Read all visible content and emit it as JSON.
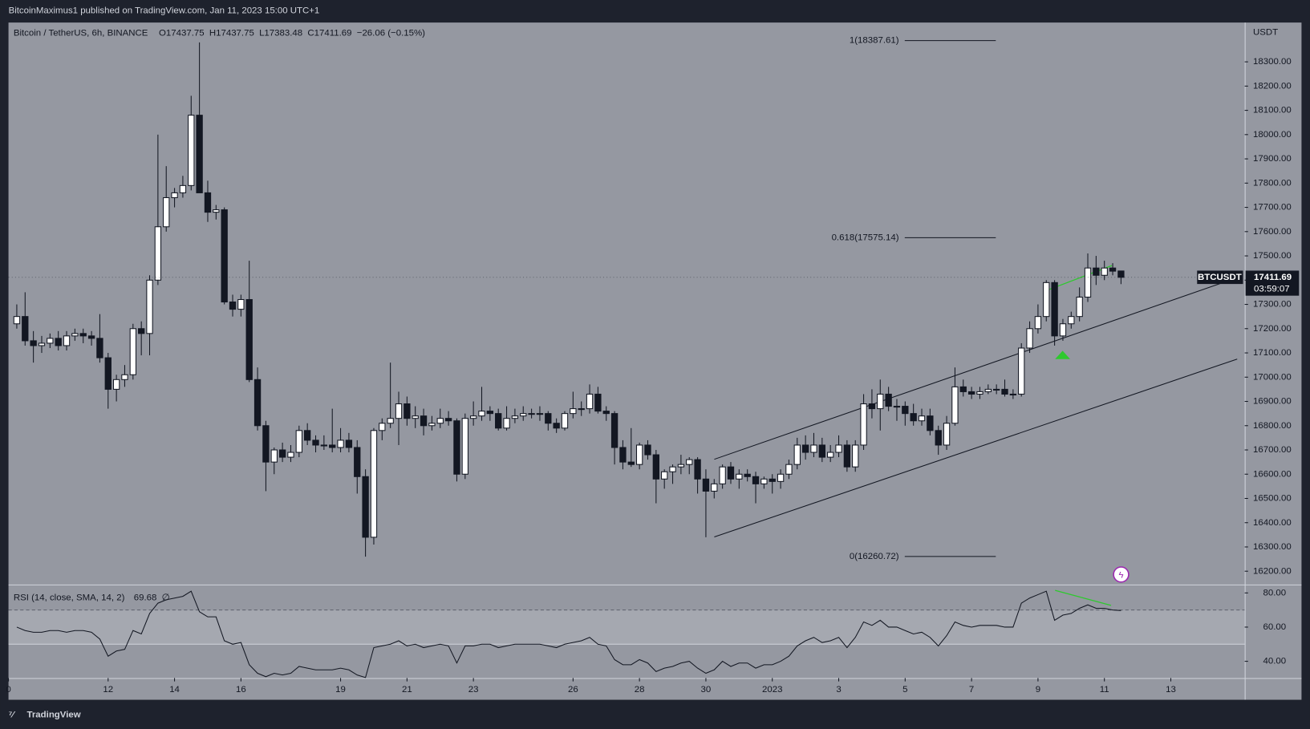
{
  "header": {
    "publisher": "BitcoinMaximus1 published on TradingView.com, Jan 11, 2023 15:00 UTC+1",
    "brand": "TradingView"
  },
  "chart_data": [
    {
      "type": "candlestick",
      "title": "Bitcoin / TetherUS, 6h, BINANCE",
      "legend_values": [
        "O17437.75",
        "H17437.75",
        "L17383.48",
        "C17411.69",
        "−26.06 (−0.15%)"
      ],
      "currency": "USDT",
      "symbol": "BTCUSDT",
      "last_price": 17411.69,
      "countdown": "03:59:07",
      "up_color": "#ffffff",
      "down_color": "#131722",
      "xlim": [
        -1,
        147.9
      ],
      "ylim": [
        16145,
        18462
      ],
      "xticks": [
        {
          "value": -1,
          "label": "0"
        },
        {
          "value": 11,
          "label": "12"
        },
        {
          "value": 19,
          "label": "14"
        },
        {
          "value": 27,
          "label": "16"
        },
        {
          "value": 39,
          "label": "19"
        },
        {
          "value": 47,
          "label": "21"
        },
        {
          "value": 55,
          "label": "23"
        },
        {
          "value": 67,
          "label": "26"
        },
        {
          "value": 75,
          "label": "28"
        },
        {
          "value": 83,
          "label": "30"
        },
        {
          "value": 91,
          "label": "2023"
        },
        {
          "value": 99,
          "label": "3"
        },
        {
          "value": 107,
          "label": "5"
        },
        {
          "value": 115,
          "label": "7"
        },
        {
          "value": 123,
          "label": "9"
        },
        {
          "value": 131,
          "label": "11"
        },
        {
          "value": 139,
          "label": "13"
        }
      ],
      "yticks": [
        {
          "value": 16200,
          "label": "16200.00"
        },
        {
          "value": 16300,
          "label": "16300.00"
        },
        {
          "value": 16400,
          "label": "16400.00"
        },
        {
          "value": 16500,
          "label": "16500.00"
        },
        {
          "value": 16600,
          "label": "16600.00"
        },
        {
          "value": 16700,
          "label": "16700.00"
        },
        {
          "value": 16800,
          "label": "16800.00"
        },
        {
          "value": 16900,
          "label": "16900.00"
        },
        {
          "value": 17000,
          "label": "17000.00"
        },
        {
          "value": 17100,
          "label": "17100.00"
        },
        {
          "value": 17200,
          "label": "17200.00"
        },
        {
          "value": 17300,
          "label": "17300.00"
        },
        {
          "value": 17400,
          "label": "17400.00"
        },
        {
          "value": 17500,
          "label": "17500.00"
        },
        {
          "value": 17600,
          "label": "17600.00"
        },
        {
          "value": 17700,
          "label": "17700.00"
        },
        {
          "value": 17800,
          "label": "17800.00"
        },
        {
          "value": 17900,
          "label": "17900.00"
        },
        {
          "value": 18000,
          "label": "18000.00"
        },
        {
          "value": 18100,
          "label": "18100.00"
        },
        {
          "value": 18200,
          "label": "18200.00"
        },
        {
          "value": 18300,
          "label": "18300.00"
        }
      ],
      "fib_levels": [
        {
          "value": 18387.61,
          "label": "1(18387.61)"
        },
        {
          "value": 17575.14,
          "label": "0.618(17575.14)"
        },
        {
          "value": 16260.72,
          "label": "0(16260.72)"
        }
      ],
      "candles": [
        [
          17220,
          17300,
          17200,
          17250
        ],
        [
          17250,
          17350,
          17130,
          17150
        ],
        [
          17150,
          17190,
          17060,
          17130
        ],
        [
          17130,
          17170,
          17100,
          17140
        ],
        [
          17140,
          17180,
          17120,
          17160
        ],
        [
          17160,
          17190,
          17110,
          17130
        ],
        [
          17130,
          17190,
          17110,
          17170
        ],
        [
          17170,
          17200,
          17150,
          17180
        ],
        [
          17180,
          17200,
          17140,
          17170
        ],
        [
          17170,
          17190,
          17130,
          17160
        ],
        [
          17160,
          17260,
          17060,
          17080
        ],
        [
          17080,
          17100,
          16870,
          16950
        ],
        [
          16950,
          17010,
          16900,
          16990
        ],
        [
          16990,
          17050,
          16960,
          17010
        ],
        [
          17010,
          17220,
          16990,
          17200
        ],
        [
          17200,
          17230,
          17090,
          17180
        ],
        [
          17180,
          17420,
          17090,
          17400
        ],
        [
          17400,
          18000,
          17380,
          17620
        ],
        [
          17620,
          17870,
          17600,
          17740
        ],
        [
          17740,
          17780,
          17700,
          17760
        ],
        [
          17760,
          17830,
          17740,
          17790
        ],
        [
          17790,
          18160,
          17770,
          18080
        ],
        [
          18080,
          18380,
          17780,
          17760
        ],
        [
          17760,
          17810,
          17640,
          17680
        ],
        [
          17680,
          17710,
          17650,
          17690
        ],
        [
          17690,
          17700,
          17300,
          17310
        ],
        [
          17310,
          17340,
          17250,
          17280
        ],
        [
          17280,
          17340,
          17250,
          17320
        ],
        [
          17320,
          17480,
          16980,
          16990
        ],
        [
          16990,
          17040,
          16780,
          16800
        ],
        [
          16800,
          16820,
          16530,
          16650
        ],
        [
          16650,
          16710,
          16600,
          16700
        ],
        [
          16700,
          16730,
          16650,
          16670
        ],
        [
          16670,
          16720,
          16650,
          16690
        ],
        [
          16690,
          16800,
          16670,
          16780
        ],
        [
          16780,
          16810,
          16720,
          16740
        ],
        [
          16740,
          16760,
          16690,
          16720
        ],
        [
          16720,
          16760,
          16700,
          16720
        ],
        [
          16720,
          16870,
          16690,
          16710
        ],
        [
          16710,
          16790,
          16690,
          16740
        ],
        [
          16740,
          16770,
          16690,
          16710
        ],
        [
          16710,
          16740,
          16520,
          16590
        ],
        [
          16590,
          16620,
          16260,
          16340
        ],
        [
          16340,
          16790,
          16310,
          16780
        ],
        [
          16780,
          16830,
          16740,
          16810
        ],
        [
          16810,
          17060,
          16790,
          16830
        ],
        [
          16830,
          16940,
          16720,
          16890
        ],
        [
          16890,
          16920,
          16800,
          16830
        ],
        [
          16830,
          16880,
          16790,
          16840
        ],
        [
          16840,
          16870,
          16760,
          16800
        ],
        [
          16800,
          16840,
          16780,
          16810
        ],
        [
          16810,
          16870,
          16790,
          16830
        ],
        [
          16830,
          16860,
          16800,
          16820
        ],
        [
          16820,
          16830,
          16570,
          16600
        ],
        [
          16600,
          16850,
          16580,
          16830
        ],
        [
          16830,
          16900,
          16800,
          16840
        ],
        [
          16840,
          16960,
          16820,
          16860
        ],
        [
          16860,
          16880,
          16820,
          16850
        ],
        [
          16850,
          16870,
          16780,
          16790
        ],
        [
          16790,
          16880,
          16780,
          16830
        ],
        [
          16830,
          16870,
          16810,
          16840
        ],
        [
          16840,
          16880,
          16820,
          16850
        ],
        [
          16850,
          16870,
          16830,
          16850
        ],
        [
          16850,
          16880,
          16820,
          16850
        ],
        [
          16850,
          16860,
          16780,
          16810
        ],
        [
          16810,
          16830,
          16770,
          16790
        ],
        [
          16790,
          16860,
          16780,
          16850
        ],
        [
          16850,
          16940,
          16830,
          16870
        ],
        [
          16870,
          16900,
          16840,
          16870
        ],
        [
          16870,
          16970,
          16850,
          16930
        ],
        [
          16930,
          16960,
          16850,
          16860
        ],
        [
          16860,
          16880,
          16820,
          16850
        ],
        [
          16850,
          16860,
          16640,
          16710
        ],
        [
          16710,
          16740,
          16620,
          16650
        ],
        [
          16650,
          16790,
          16630,
          16640
        ],
        [
          16640,
          16730,
          16620,
          16720
        ],
        [
          16720,
          16740,
          16660,
          16680
        ],
        [
          16680,
          16700,
          16480,
          16580
        ],
        [
          16580,
          16620,
          16540,
          16610
        ],
        [
          16610,
          16640,
          16560,
          16630
        ],
        [
          16630,
          16680,
          16600,
          16640
        ],
        [
          16640,
          16670,
          16600,
          16660
        ],
        [
          16660,
          16670,
          16520,
          16580
        ],
        [
          16580,
          16620,
          16340,
          16530
        ],
        [
          16530,
          16580,
          16500,
          16560
        ],
        [
          16560,
          16640,
          16540,
          16630
        ],
        [
          16630,
          16650,
          16560,
          16580
        ],
        [
          16580,
          16620,
          16540,
          16600
        ],
        [
          16600,
          16620,
          16570,
          16590
        ],
        [
          16590,
          16610,
          16480,
          16560
        ],
        [
          16560,
          16590,
          16540,
          16580
        ],
        [
          16580,
          16600,
          16520,
          16570
        ],
        [
          16570,
          16620,
          16540,
          16600
        ],
        [
          16600,
          16660,
          16580,
          16640
        ],
        [
          16640,
          16750,
          16620,
          16720
        ],
        [
          16720,
          16760,
          16660,
          16690
        ],
        [
          16690,
          16770,
          16670,
          16720
        ],
        [
          16720,
          16750,
          16650,
          16670
        ],
        [
          16670,
          16720,
          16650,
          16690
        ],
        [
          16690,
          16760,
          16670,
          16720
        ],
        [
          16720,
          16740,
          16610,
          16630
        ],
        [
          16630,
          16740,
          16610,
          16720
        ],
        [
          16720,
          16930,
          16700,
          16890
        ],
        [
          16890,
          16950,
          16830,
          16870
        ],
        [
          16870,
          16990,
          16780,
          16930
        ],
        [
          16930,
          16960,
          16860,
          16880
        ],
        [
          16880,
          16910,
          16820,
          16880
        ],
        [
          16880,
          16900,
          16800,
          16850
        ],
        [
          16850,
          16890,
          16800,
          16820
        ],
        [
          16820,
          16870,
          16800,
          16840
        ],
        [
          16840,
          16870,
          16760,
          16780
        ],
        [
          16780,
          16800,
          16680,
          16720
        ],
        [
          16720,
          16840,
          16700,
          16810
        ],
        [
          16810,
          17040,
          16800,
          16960
        ],
        [
          16960,
          16990,
          16920,
          16940
        ],
        [
          16940,
          16960,
          16910,
          16930
        ],
        [
          16930,
          16960,
          16910,
          16940
        ],
        [
          16940,
          16970,
          16930,
          16950
        ],
        [
          16950,
          16970,
          16930,
          16950
        ],
        [
          16950,
          16990,
          16920,
          16930
        ],
        [
          16930,
          16950,
          16910,
          16930
        ],
        [
          16930,
          17140,
          16920,
          17120
        ],
        [
          17120,
          17230,
          17100,
          17200
        ],
        [
          17200,
          17300,
          17180,
          17250
        ],
        [
          17250,
          17400,
          17230,
          17390
        ],
        [
          17390,
          17400,
          17130,
          17170
        ],
        [
          17170,
          17240,
          17150,
          17220
        ],
        [
          17220,
          17270,
          17200,
          17250
        ],
        [
          17250,
          17370,
          17230,
          17330
        ],
        [
          17330,
          17510,
          17310,
          17450
        ],
        [
          17450,
          17500,
          17380,
          17420
        ],
        [
          17420,
          17480,
          17400,
          17450
        ],
        [
          17450,
          17470,
          17420,
          17437
        ],
        [
          17437.75,
          17437.75,
          17383.48,
          17411.69
        ]
      ]
    },
    {
      "type": "line",
      "title": "RSI (14, close, SMA, 14, 2)",
      "legend_values": [
        "69.68",
        "∅"
      ],
      "color": "#131722",
      "ylim": [
        30.2,
        84.9
      ],
      "yticks": [
        {
          "value": 40,
          "label": "40.00"
        },
        {
          "value": 60,
          "label": "60.00"
        },
        {
          "value": 80,
          "label": "80.00"
        }
      ],
      "band": [
        50,
        70
      ],
      "values": [
        60,
        58,
        57,
        57,
        58,
        58,
        57,
        58,
        58,
        57,
        53,
        43,
        46,
        47,
        58,
        56,
        68,
        74,
        76,
        77,
        78,
        81,
        69,
        66,
        66,
        52,
        50,
        51,
        38,
        33,
        31,
        33,
        32,
        33,
        37,
        36,
        35,
        35,
        35,
        36,
        35,
        32,
        30.5,
        48,
        49,
        50,
        52,
        49,
        50,
        48,
        49,
        50,
        49,
        39,
        49,
        49,
        50,
        50,
        48,
        49,
        50,
        50,
        50,
        50,
        49,
        48,
        50,
        51,
        52,
        54,
        50,
        49,
        41,
        38,
        38,
        41,
        39,
        34,
        36,
        37,
        39,
        40,
        36,
        33,
        35,
        40,
        37,
        39,
        39,
        36,
        38,
        38,
        40,
        43,
        49,
        52,
        54,
        51,
        52,
        54,
        48,
        54,
        63,
        61,
        64,
        60,
        60,
        58,
        56,
        57,
        54,
        49,
        55,
        63,
        61,
        60,
        61,
        61,
        61,
        60,
        60,
        74,
        77,
        79,
        81,
        64,
        67,
        68,
        71,
        73,
        71,
        71,
        70,
        69.68
      ]
    }
  ]
}
